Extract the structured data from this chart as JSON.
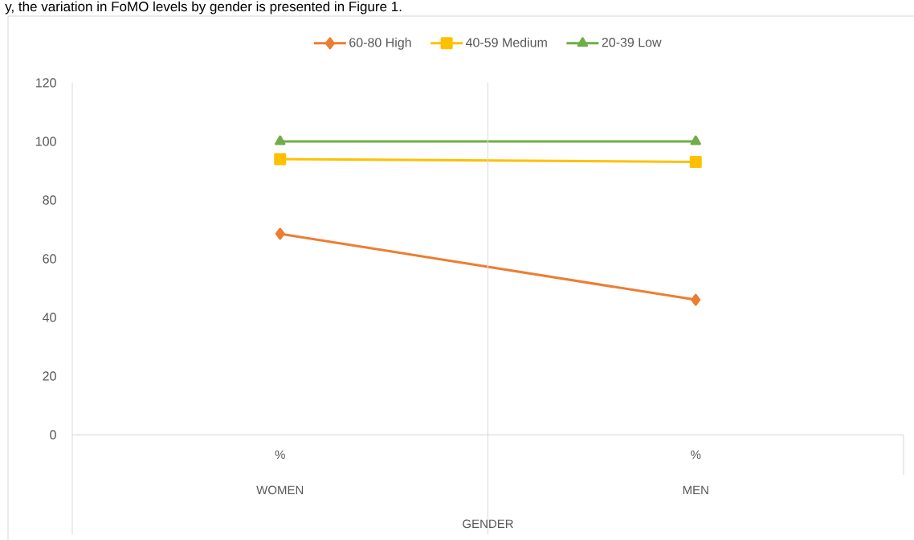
{
  "chart_data": {
    "type": "line",
    "categories": [
      "%",
      "%"
    ],
    "series": [
      {
        "name": "60-80 High",
        "color": "#ed7d31",
        "marker": "diamond",
        "values": [
          68.5,
          46
        ]
      },
      {
        "name": "40-59 Medium",
        "color": "#ffc000",
        "marker": "square",
        "values": [
          94,
          93
        ]
      },
      {
        "name": "20-39 Low",
        "color": "#70ad47",
        "marker": "triangle",
        "values": [
          100,
          100
        ]
      }
    ],
    "annotations": [
      "WOMEN",
      "MEN",
      "y, the variation in FoMO levels by gender is presented in Figure 1.",
      "GENDER"
    ],
    "ylim": [
      0,
      120
    ],
    "yticks": [
      0,
      20,
      40,
      60,
      80,
      100,
      120
    ],
    "grid": false,
    "legend": "top",
    "line_style": "solid"
  }
}
